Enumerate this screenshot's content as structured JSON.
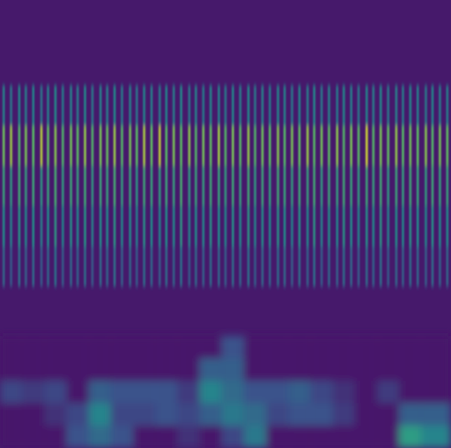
{
  "chart_data": {
    "type": "heatmap",
    "tick_labels": false,
    "grid": false,
    "xlim": [
      0,
      61
    ],
    "ylim": [
      0,
      100
    ],
    "zlim": [
      0,
      1
    ],
    "pulses": {
      "x": [
        0.5,
        1.5,
        2.6,
        3.5,
        4.5,
        5.6,
        6.5,
        7.5,
        8.5,
        9.6,
        10.5,
        11.5,
        12.5,
        13.6,
        14.5,
        15.5,
        16.5,
        17.6,
        18.5,
        19.5,
        20.5,
        21.6,
        22.5,
        23.5,
        24.5,
        25.6,
        26.5,
        27.5,
        28.5,
        29.6,
        30.5,
        31.5,
        32.5,
        33.6,
        34.5,
        35.5,
        36.5,
        37.6,
        38.5,
        39.5,
        40.5,
        41.6,
        42.5,
        43.5,
        44.5,
        45.6,
        46.5,
        47.5,
        48.5,
        49.6,
        50.5,
        51.5,
        52.5,
        53.6,
        54.5,
        55.5,
        56.5,
        57.6,
        58.5,
        59.5,
        60.5
      ],
      "y_edges": [
        36,
        45,
        54,
        63,
        72,
        81
      ],
      "cells": [
        [
          0.35,
          0.3,
          0.38,
          0.32,
          0.36,
          0.3,
          0.34,
          0.39,
          0.31,
          0.35,
          0.33,
          0.37,
          0.3,
          0.36,
          0.34,
          0.38,
          0.32,
          0.35,
          0.3,
          0.37,
          0.34,
          0.31,
          0.36,
          0.33,
          0.39,
          0.3,
          0.35,
          0.32,
          0.37,
          0.34,
          0.31,
          0.36,
          0.33,
          0.38,
          0.3,
          0.35,
          0.32,
          0.37,
          0.34,
          0.31,
          0.36,
          0.33,
          0.38,
          0.3,
          0.35,
          0.32,
          0.37,
          0.34,
          0.31,
          0.36,
          0.33,
          0.38,
          0.3,
          0.35,
          0.32,
          0.37,
          0.34,
          0.31,
          0.36,
          0.33,
          0.35
        ],
        [
          0.5,
          0.46,
          0.53,
          0.48,
          0.51,
          0.45,
          0.5,
          0.55,
          0.47,
          0.52,
          0.49,
          0.53,
          0.46,
          0.51,
          0.5,
          0.54,
          0.48,
          0.5,
          0.45,
          0.52,
          0.5,
          0.47,
          0.51,
          0.49,
          0.55,
          0.46,
          0.5,
          0.48,
          0.53,
          0.5,
          0.47,
          0.52,
          0.49,
          0.54,
          0.46,
          0.51,
          0.48,
          0.53,
          0.5,
          0.47,
          0.52,
          0.49,
          0.54,
          0.46,
          0.51,
          0.48,
          0.53,
          0.5,
          0.47,
          0.52,
          0.49,
          0.54,
          0.46,
          0.51,
          0.48,
          0.53,
          0.5,
          0.47,
          0.52,
          0.49,
          0.5
        ],
        [
          0.6,
          0.56,
          0.64,
          0.58,
          0.62,
          0.55,
          0.6,
          0.66,
          0.57,
          0.62,
          0.59,
          0.63,
          0.56,
          0.61,
          0.6,
          0.65,
          0.58,
          0.6,
          0.55,
          0.62,
          0.6,
          0.57,
          0.61,
          0.59,
          0.66,
          0.56,
          0.6,
          0.58,
          0.63,
          0.6,
          0.57,
          0.62,
          0.59,
          0.64,
          0.56,
          0.61,
          0.58,
          0.63,
          0.6,
          0.57,
          0.62,
          0.59,
          0.64,
          0.56,
          0.61,
          0.58,
          0.63,
          0.6,
          0.57,
          0.62,
          0.59,
          0.64,
          0.56,
          0.61,
          0.58,
          0.63,
          0.6,
          0.57,
          0.62,
          0.59,
          0.6
        ],
        [
          0.78,
          0.86,
          0.72,
          0.8,
          0.74,
          0.9,
          0.76,
          0.82,
          0.7,
          0.79,
          0.75,
          0.84,
          0.71,
          0.8,
          0.77,
          0.85,
          0.72,
          0.8,
          0.74,
          0.88,
          0.76,
          0.92,
          0.73,
          0.8,
          0.75,
          0.83,
          0.71,
          0.79,
          0.76,
          0.86,
          0.72,
          0.8,
          0.74,
          0.84,
          0.7,
          0.78,
          0.75,
          0.82,
          0.72,
          0.8,
          0.76,
          0.85,
          0.73,
          0.79,
          0.75,
          0.83,
          0.71,
          0.8,
          0.74,
          0.94,
          0.72,
          0.8,
          0.76,
          0.84,
          0.73,
          0.79,
          0.75,
          0.82,
          0.72,
          0.8,
          0.76
        ],
        [
          0.46,
          0.42,
          0.48,
          0.44,
          0.47,
          0.41,
          0.45,
          0.5,
          0.43,
          0.46,
          0.44,
          0.48,
          0.42,
          0.46,
          0.45,
          0.49,
          0.43,
          0.46,
          0.41,
          0.47,
          0.45,
          0.43,
          0.47,
          0.44,
          0.5,
          0.42,
          0.46,
          0.43,
          0.48,
          0.45,
          0.42,
          0.47,
          0.44,
          0.49,
          0.42,
          0.46,
          0.43,
          0.48,
          0.45,
          0.42,
          0.47,
          0.44,
          0.49,
          0.42,
          0.46,
          0.43,
          0.48,
          0.45,
          0.42,
          0.47,
          0.44,
          0.49,
          0.42,
          0.46,
          0.43,
          0.48,
          0.45,
          0.42,
          0.47,
          0.44,
          0.45
        ]
      ]
    },
    "low_band": {
      "x_edges": [
        0,
        3,
        6,
        9,
        12,
        15,
        18,
        21,
        24,
        27,
        30,
        33,
        36,
        39,
        42,
        45,
        48,
        51,
        54,
        57,
        61
      ],
      "y_edges": [
        0,
        5,
        10,
        15,
        20,
        25
      ],
      "cells": [
        [
          0,
          0,
          0,
          0.25,
          0.35,
          0.25,
          0,
          0,
          0.1,
          0,
          0.2,
          0.4,
          0,
          0,
          0,
          0,
          0,
          0,
          0.55,
          0.45
        ],
        [
          0,
          0,
          0.1,
          0.2,
          0.45,
          0.2,
          0.2,
          0.25,
          0.2,
          0.3,
          0.4,
          0.35,
          0.2,
          0.25,
          0.25,
          0.15,
          0,
          0,
          0.3,
          0.3
        ],
        [
          0.2,
          0.15,
          0.2,
          0,
          0.3,
          0.25,
          0.25,
          0.25,
          0.15,
          0.45,
          0.35,
          0.25,
          0.25,
          0.3,
          0.2,
          0.1,
          0,
          0.15,
          0,
          0
        ],
        [
          0,
          0,
          0,
          0,
          0,
          0,
          0,
          0,
          0,
          0.3,
          0.3,
          0,
          0,
          0,
          0,
          0,
          0,
          0,
          0,
          0
        ],
        [
          0,
          0,
          0,
          0,
          0,
          0,
          0,
          0,
          0,
          0,
          0.25,
          0,
          0,
          0,
          0,
          0,
          0,
          0,
          0,
          0
        ]
      ]
    }
  }
}
